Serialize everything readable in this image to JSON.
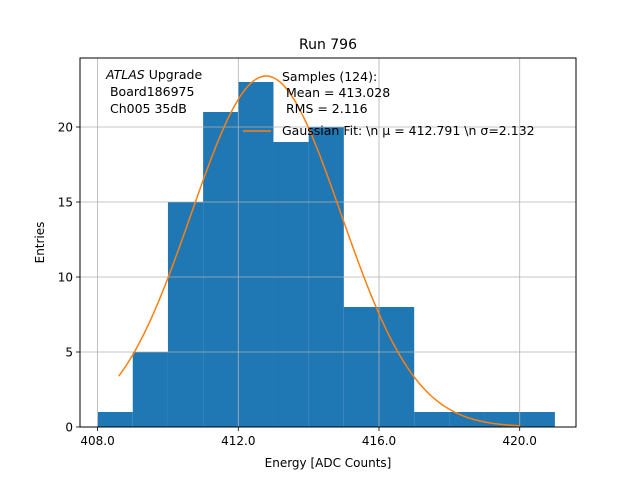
{
  "chart_data": {
    "type": "bar",
    "title": "Run 796",
    "xlabel": "Energy [ADC Counts]",
    "ylabel": "Entries",
    "xlim": [
      407.5,
      421.6
    ],
    "ylim": [
      0,
      24.6
    ],
    "x_ticks": [
      408,
      412,
      416,
      420
    ],
    "x_tick_labels": [
      "408.0",
      "412.0",
      "416.0",
      "420.0"
    ],
    "y_ticks": [
      0,
      5,
      10,
      15,
      20
    ],
    "y_tick_labels": [
      "0",
      "5",
      "10",
      "15",
      "20"
    ],
    "grid": true,
    "bins": [
      {
        "x0": 408,
        "x1": 409,
        "count": 1
      },
      {
        "x0": 409,
        "x1": 410,
        "count": 5
      },
      {
        "x0": 410,
        "x1": 411,
        "count": 15
      },
      {
        "x0": 411,
        "x1": 412,
        "count": 21
      },
      {
        "x0": 412,
        "x1": 413,
        "count": 23
      },
      {
        "x0": 413,
        "x1": 414,
        "count": 19
      },
      {
        "x0": 414,
        "x1": 415,
        "count": 20
      },
      {
        "x0": 415,
        "x1": 416,
        "count": 8
      },
      {
        "x0": 416,
        "x1": 417,
        "count": 8
      },
      {
        "x0": 417,
        "x1": 418,
        "count": 1
      },
      {
        "x0": 418,
        "x1": 419,
        "count": 1
      },
      {
        "x0": 419,
        "x1": 420,
        "count": 1
      },
      {
        "x0": 420,
        "x1": 421,
        "count": 1
      }
    ],
    "bar_color": "#1f77b4",
    "fit": {
      "name": "Gaussian Fit: \\n μ = 412.791 \\n σ=2.132",
      "mu": 412.791,
      "sigma": 2.132,
      "amplitude": 23.4,
      "x_range": [
        408.6,
        420.0
      ],
      "color": "#ff7f0e"
    },
    "legend": {
      "placement": "top-right",
      "entries": [
        "Samples (124):",
        " Mean = 413.028",
        " RMS = 2.116"
      ]
    },
    "annotation": {
      "italic": "ATLAS",
      "line1_rest": " Upgrade",
      "line2": " Board186975",
      "line3": " Ch005 35dB"
    }
  }
}
